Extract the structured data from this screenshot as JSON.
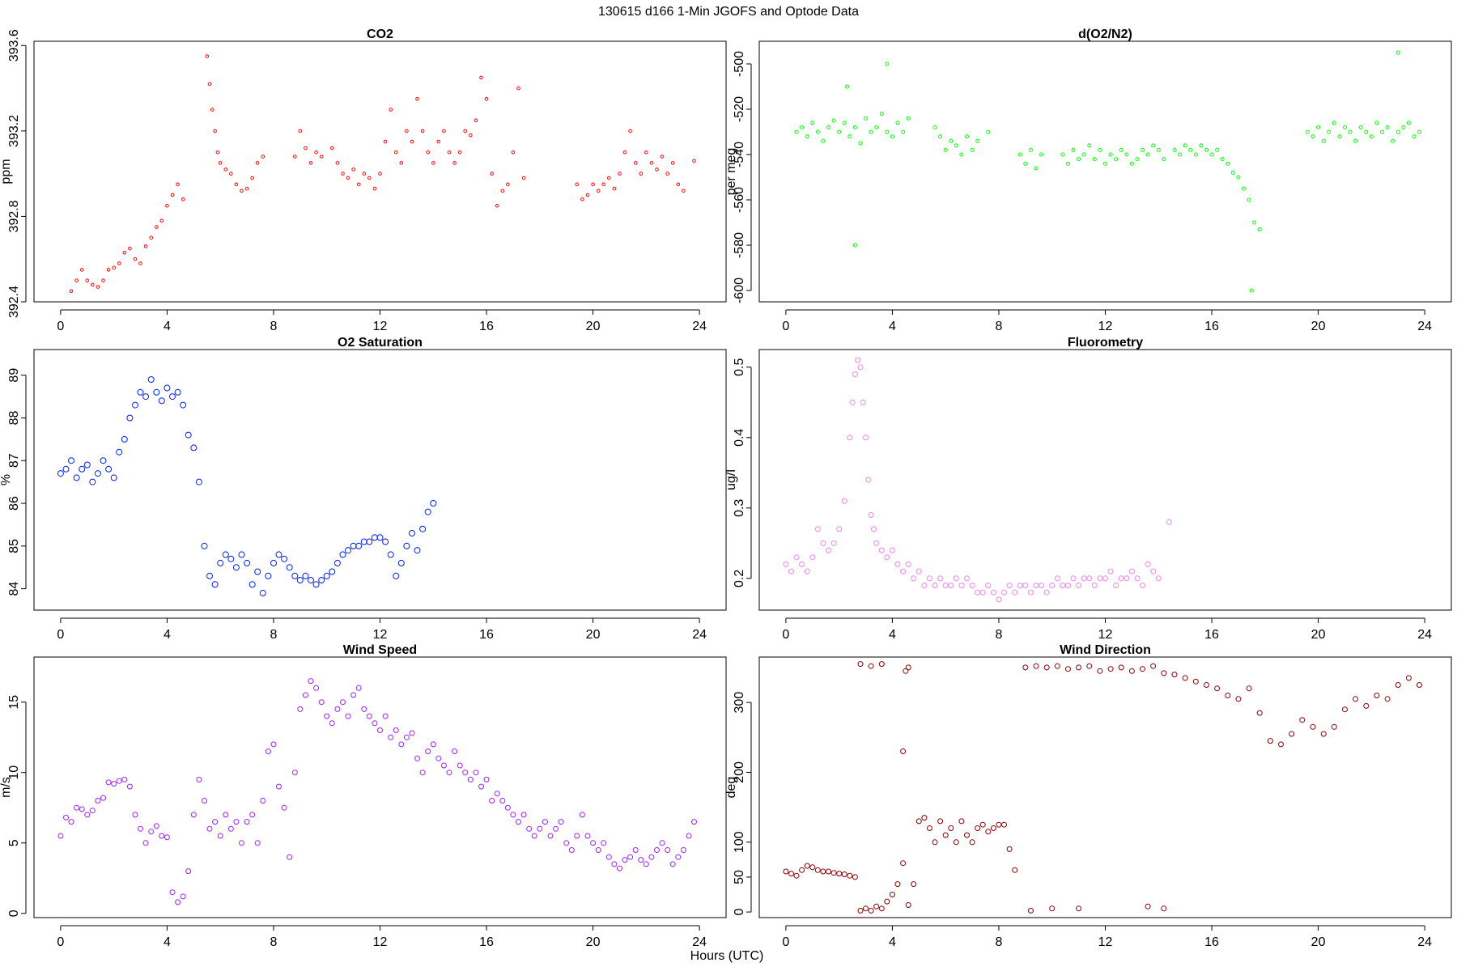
{
  "figure": {
    "suptitle": "130615   d166   1-Min  JGOFS and Optode Data",
    "xlabel": "Hours (UTC)"
  },
  "chart_data": [
    {
      "type": "scatter",
      "title": "CO2",
      "ylabel": "ppm",
      "color": "#ff0000",
      "marker_size": 1.8,
      "xlim": [
        -1,
        25
      ],
      "ylim": [
        392.4,
        393.62
      ],
      "xticks": [
        0,
        4,
        8,
        12,
        16,
        20,
        24
      ],
      "yticks": [
        392.4,
        392.8,
        393.2,
        393.6
      ],
      "x": [
        0.4,
        0.6,
        0.8,
        1.0,
        1.2,
        1.4,
        1.6,
        1.8,
        2.0,
        2.2,
        2.4,
        2.6,
        2.8,
        3.0,
        3.2,
        3.4,
        3.6,
        3.8,
        4.0,
        4.2,
        4.4,
        4.6,
        5.5,
        5.6,
        5.7,
        5.8,
        5.9,
        6.0,
        6.2,
        6.4,
        6.6,
        6.8,
        7.0,
        7.2,
        7.4,
        7.6,
        8.8,
        9.0,
        9.2,
        9.4,
        9.6,
        9.8,
        10.2,
        10.4,
        10.6,
        10.8,
        11.0,
        11.2,
        11.4,
        11.6,
        11.8,
        12.0,
        12.2,
        12.4,
        12.6,
        12.8,
        13.0,
        13.2,
        13.4,
        13.6,
        13.8,
        14.0,
        14.2,
        14.4,
        14.6,
        14.8,
        15.0,
        15.2,
        15.4,
        15.6,
        15.8,
        16.0,
        16.2,
        16.4,
        16.6,
        16.8,
        17.0,
        17.2,
        17.4,
        19.4,
        19.6,
        19.8,
        20.0,
        20.2,
        20.4,
        20.6,
        20.8,
        21.0,
        21.2,
        21.4,
        21.6,
        21.8,
        22.0,
        22.2,
        22.4,
        22.6,
        22.8,
        23.0,
        23.2,
        23.4,
        23.8
      ],
      "y": [
        392.45,
        392.5,
        392.55,
        392.5,
        392.48,
        392.47,
        392.5,
        392.55,
        392.56,
        392.58,
        392.63,
        392.65,
        392.6,
        392.58,
        392.66,
        392.7,
        392.75,
        392.78,
        392.85,
        392.9,
        392.95,
        392.88,
        393.55,
        393.42,
        393.3,
        393.2,
        393.1,
        393.05,
        393.02,
        393.0,
        392.95,
        392.92,
        392.93,
        392.98,
        393.05,
        393.08,
        393.08,
        393.2,
        393.12,
        393.05,
        393.1,
        393.08,
        393.12,
        393.05,
        393.0,
        392.98,
        393.02,
        392.95,
        393.0,
        392.98,
        392.93,
        393.0,
        393.15,
        393.3,
        393.1,
        393.05,
        393.2,
        393.15,
        393.35,
        393.2,
        393.1,
        393.05,
        393.15,
        393.2,
        393.1,
        393.05,
        393.1,
        393.2,
        393.18,
        393.25,
        393.45,
        393.35,
        393.0,
        392.85,
        392.92,
        392.95,
        393.1,
        393.4,
        392.98,
        392.95,
        392.88,
        392.9,
        392.95,
        392.92,
        392.95,
        392.98,
        392.93,
        393.0,
        393.1,
        393.2,
        393.05,
        393.0,
        393.1,
        393.05,
        393.02,
        393.08,
        393.0,
        393.05,
        392.95,
        392.92,
        393.06
      ]
    },
    {
      "type": "scatter",
      "title": "d(O2/N2)",
      "ylabel": "per meg",
      "color": "#00ff00",
      "marker_size": 2,
      "xlim": [
        -1,
        25
      ],
      "ylim": [
        -605,
        -490
      ],
      "xticks": [
        0,
        4,
        8,
        12,
        16,
        20,
        24
      ],
      "yticks": [
        -500,
        -520,
        -540,
        -560,
        -580,
        -600
      ],
      "x": [
        0.4,
        0.6,
        0.8,
        1.0,
        1.2,
        1.4,
        1.6,
        1.8,
        2.0,
        2.2,
        2.3,
        2.4,
        2.6,
        2.8,
        3.0,
        3.2,
        3.4,
        3.6,
        3.8,
        4.0,
        4.2,
        4.4,
        4.6,
        5.6,
        5.8,
        6.0,
        6.2,
        6.4,
        6.6,
        6.8,
        7.0,
        7.2,
        7.6,
        8.8,
        9.0,
        9.2,
        9.4,
        9.6,
        10.4,
        10.6,
        10.8,
        11.0,
        11.2,
        11.4,
        11.6,
        11.8,
        12.0,
        12.2,
        12.4,
        12.6,
        12.8,
        13.0,
        13.2,
        13.4,
        13.6,
        13.8,
        14.0,
        14.2,
        14.6,
        14.8,
        15.0,
        15.2,
        15.4,
        15.6,
        15.8,
        16.0,
        16.2,
        16.4,
        16.6,
        16.8,
        17.0,
        17.2,
        17.4,
        17.6,
        17.8,
        19.6,
        19.8,
        20.0,
        20.2,
        20.4,
        20.6,
        20.8,
        21.0,
        21.2,
        21.4,
        21.6,
        21.8,
        22.0,
        22.2,
        22.4,
        22.6,
        22.8,
        23.0,
        23.2,
        23.4,
        23.6,
        23.8,
        3.8,
        2.6,
        17.5,
        23.0
      ],
      "y": [
        -530,
        -528,
        -532,
        -526,
        -530,
        -534,
        -528,
        -525,
        -530,
        -526,
        -510,
        -532,
        -528,
        -535,
        -524,
        -530,
        -528,
        -522,
        -530,
        -532,
        -526,
        -530,
        -524,
        -528,
        -532,
        -538,
        -534,
        -536,
        -540,
        -532,
        -538,
        -534,
        -530,
        -540,
        -544,
        -538,
        -546,
        -540,
        -540,
        -544,
        -538,
        -542,
        -540,
        -536,
        -542,
        -538,
        -544,
        -540,
        -542,
        -538,
        -540,
        -544,
        -542,
        -538,
        -540,
        -536,
        -538,
        -542,
        -538,
        -540,
        -536,
        -538,
        -540,
        -536,
        -538,
        -540,
        -538,
        -542,
        -544,
        -548,
        -550,
        -555,
        -560,
        -570,
        -573,
        -530,
        -532,
        -528,
        -534,
        -530,
        -526,
        -532,
        -528,
        -530,
        -534,
        -528,
        -530,
        -532,
        -526,
        -530,
        -528,
        -534,
        -530,
        -528,
        -526,
        -532,
        -530,
        -500,
        -580,
        -600,
        -495
      ]
    },
    {
      "type": "scatter",
      "title": "O2 Saturation",
      "ylabel": "%",
      "color": "#0022ee",
      "marker_size": 3.5,
      "xlim": [
        -1,
        25
      ],
      "ylim": [
        83.5,
        89.6
      ],
      "xticks": [
        0,
        4,
        8,
        12,
        16,
        20,
        24
      ],
      "yticks": [
        84,
        85,
        86,
        87,
        88,
        89
      ],
      "x": [
        0.0,
        0.2,
        0.4,
        0.6,
        0.8,
        1.0,
        1.2,
        1.4,
        1.6,
        1.8,
        2.0,
        2.2,
        2.4,
        2.6,
        2.8,
        3.0,
        3.2,
        3.4,
        3.6,
        3.8,
        4.0,
        4.2,
        4.4,
        4.6,
        4.8,
        5.0,
        5.2,
        5.4,
        5.6,
        5.8,
        6.0,
        6.2,
        6.4,
        6.6,
        6.8,
        7.0,
        7.2,
        7.4,
        7.6,
        7.8,
        8.0,
        8.2,
        8.4,
        8.6,
        8.8,
        9.0,
        9.2,
        9.4,
        9.6,
        9.8,
        10.0,
        10.2,
        10.4,
        10.6,
        10.8,
        11.0,
        11.2,
        11.4,
        11.6,
        11.8,
        12.0,
        12.2,
        12.4,
        12.6,
        12.8,
        13.0,
        13.2,
        13.4,
        13.6,
        13.8,
        14.0
      ],
      "y": [
        86.7,
        86.8,
        87.0,
        86.6,
        86.8,
        86.9,
        86.5,
        86.7,
        87.0,
        86.8,
        86.6,
        87.2,
        87.5,
        88.0,
        88.3,
        88.6,
        88.5,
        88.9,
        88.6,
        88.4,
        88.7,
        88.5,
        88.6,
        88.3,
        87.6,
        87.3,
        86.5,
        85.0,
        84.3,
        84.1,
        84.6,
        84.8,
        84.7,
        84.5,
        84.8,
        84.6,
        84.1,
        84.4,
        83.9,
        84.3,
        84.6,
        84.8,
        84.7,
        84.5,
        84.3,
        84.2,
        84.3,
        84.2,
        84.1,
        84.2,
        84.3,
        84.4,
        84.6,
        84.8,
        84.9,
        85.0,
        85.0,
        85.1,
        85.1,
        85.2,
        85.2,
        85.1,
        84.8,
        84.3,
        84.6,
        85.0,
        85.3,
        84.9,
        85.4,
        85.8,
        86.0
      ]
    },
    {
      "type": "scatter",
      "title": "Fluorometry",
      "ylabel": "ug/l",
      "color": "#ee82ee",
      "marker_size": 3,
      "xlim": [
        -1,
        25
      ],
      "ylim": [
        0.155,
        0.525
      ],
      "xticks": [
        0,
        4,
        8,
        12,
        16,
        20,
        24
      ],
      "yticks": [
        0.2,
        0.3,
        0.4,
        0.5
      ],
      "x": [
        0.0,
        0.2,
        0.4,
        0.6,
        0.8,
        1.0,
        1.2,
        1.4,
        1.6,
        1.8,
        2.0,
        2.2,
        2.4,
        2.5,
        2.6,
        2.7,
        2.8,
        2.9,
        3.0,
        3.1,
        3.2,
        3.3,
        3.4,
        3.6,
        3.8,
        4.0,
        4.2,
        4.4,
        4.6,
        4.8,
        5.0,
        5.2,
        5.4,
        5.6,
        5.8,
        6.0,
        6.2,
        6.4,
        6.6,
        6.8,
        7.0,
        7.2,
        7.4,
        7.6,
        7.8,
        8.0,
        8.2,
        8.4,
        8.6,
        8.8,
        9.0,
        9.2,
        9.4,
        9.6,
        9.8,
        10.0,
        10.2,
        10.4,
        10.6,
        10.8,
        11.0,
        11.2,
        11.4,
        11.6,
        11.8,
        12.0,
        12.2,
        12.4,
        12.6,
        12.8,
        13.0,
        13.2,
        13.4,
        13.6,
        13.8,
        14.0,
        14.4
      ],
      "y": [
        0.22,
        0.21,
        0.23,
        0.22,
        0.21,
        0.23,
        0.27,
        0.25,
        0.24,
        0.25,
        0.27,
        0.31,
        0.4,
        0.45,
        0.49,
        0.51,
        0.5,
        0.45,
        0.4,
        0.34,
        0.29,
        0.27,
        0.25,
        0.24,
        0.23,
        0.24,
        0.22,
        0.21,
        0.22,
        0.2,
        0.21,
        0.19,
        0.2,
        0.19,
        0.2,
        0.19,
        0.19,
        0.2,
        0.19,
        0.2,
        0.19,
        0.18,
        0.18,
        0.19,
        0.18,
        0.17,
        0.18,
        0.19,
        0.18,
        0.19,
        0.19,
        0.18,
        0.19,
        0.19,
        0.18,
        0.19,
        0.2,
        0.19,
        0.19,
        0.2,
        0.19,
        0.2,
        0.2,
        0.19,
        0.2,
        0.2,
        0.21,
        0.19,
        0.2,
        0.2,
        0.21,
        0.2,
        0.19,
        0.22,
        0.21,
        0.2,
        0.28
      ]
    },
    {
      "type": "scatter",
      "title": "Wind Speed",
      "ylabel": "m/s",
      "color": "#a020f0",
      "marker_size": 3,
      "xlim": [
        -1,
        25
      ],
      "ylim": [
        -0.3,
        18.2
      ],
      "xticks": [
        0,
        4,
        8,
        12,
        16,
        20,
        24
      ],
      "yticks": [
        0,
        5,
        10,
        15
      ],
      "x": [
        0.0,
        0.2,
        0.4,
        0.6,
        0.8,
        1.0,
        1.2,
        1.4,
        1.6,
        1.8,
        2.0,
        2.2,
        2.4,
        2.6,
        2.8,
        3.0,
        3.2,
        3.4,
        3.6,
        3.8,
        4.0,
        4.2,
        4.4,
        4.6,
        4.8,
        5.0,
        5.2,
        5.4,
        5.6,
        5.8,
        6.0,
        6.2,
        6.4,
        6.6,
        6.8,
        7.0,
        7.2,
        7.4,
        7.6,
        7.8,
        8.0,
        8.2,
        8.4,
        8.6,
        8.8,
        9.0,
        9.2,
        9.4,
        9.6,
        9.8,
        10.0,
        10.2,
        10.4,
        10.6,
        10.8,
        11.0,
        11.2,
        11.4,
        11.6,
        11.8,
        12.0,
        12.2,
        12.4,
        12.6,
        12.8,
        13.0,
        13.2,
        13.4,
        13.6,
        13.8,
        14.0,
        14.2,
        14.4,
        14.6,
        14.8,
        15.0,
        15.2,
        15.4,
        15.6,
        15.8,
        16.0,
        16.2,
        16.4,
        16.6,
        16.8,
        17.0,
        17.2,
        17.4,
        17.6,
        17.8,
        18.0,
        18.2,
        18.4,
        18.6,
        18.8,
        19.0,
        19.2,
        19.4,
        19.6,
        19.8,
        20.0,
        20.2,
        20.4,
        20.6,
        20.8,
        21.0,
        21.2,
        21.4,
        21.6,
        21.8,
        22.0,
        22.2,
        22.4,
        22.6,
        22.8,
        23.0,
        23.2,
        23.4,
        23.6,
        23.8
      ],
      "y": [
        5.5,
        6.8,
        6.5,
        7.5,
        7.4,
        7.0,
        7.3,
        8.0,
        8.2,
        9.3,
        9.2,
        9.4,
        9.5,
        9.0,
        7.0,
        6.0,
        5.0,
        5.8,
        6.2,
        5.5,
        5.4,
        1.5,
        0.8,
        1.2,
        3.0,
        7.0,
        9.5,
        8.0,
        6.0,
        6.5,
        5.5,
        7.0,
        6.0,
        6.5,
        5.0,
        6.5,
        7.0,
        5.0,
        8.0,
        11.5,
        12.0,
        9.0,
        7.5,
        4.0,
        10.0,
        14.5,
        15.5,
        16.5,
        16.0,
        15.0,
        14.0,
        13.5,
        14.5,
        15.0,
        14.0,
        15.5,
        16.0,
        14.5,
        14.0,
        13.5,
        13.0,
        14.0,
        12.5,
        13.0,
        12.0,
        12.5,
        12.8,
        11.0,
        10.0,
        11.5,
        12.0,
        11.0,
        10.5,
        10.0,
        11.5,
        10.5,
        10.0,
        9.5,
        10.0,
        9.0,
        9.5,
        8.0,
        8.5,
        8.0,
        7.5,
        7.0,
        6.5,
        7.0,
        6.0,
        5.5,
        6.0,
        6.5,
        5.5,
        6.0,
        6.5,
        5.0,
        4.5,
        5.5,
        7.0,
        5.5,
        5.0,
        4.5,
        5.0,
        4.0,
        3.5,
        3.2,
        3.8,
        4.0,
        4.5,
        3.8,
        3.5,
        4.0,
        4.5,
        5.0,
        4.5,
        3.5,
        4.0,
        4.5,
        5.5,
        6.5
      ]
    },
    {
      "type": "scatter",
      "title": "Wind Direction",
      "ylabel": "deg",
      "color": "#8b0000",
      "marker_size": 3,
      "xlim": [
        -1,
        25
      ],
      "ylim": [
        -8,
        365
      ],
      "xticks": [
        0,
        4,
        8,
        12,
        16,
        20,
        24
      ],
      "yticks": [
        0,
        50,
        100,
        200,
        300
      ],
      "x": [
        0.0,
        0.2,
        0.4,
        0.6,
        0.8,
        1.0,
        1.2,
        1.4,
        1.6,
        1.8,
        2.0,
        2.2,
        2.4,
        2.6,
        2.8,
        3.0,
        3.2,
        3.4,
        3.6,
        3.8,
        4.0,
        4.2,
        4.4,
        4.6,
        4.8,
        5.0,
        5.2,
        5.4,
        5.6,
        5.8,
        6.0,
        6.2,
        6.4,
        6.6,
        6.8,
        7.0,
        7.2,
        7.4,
        7.6,
        7.8,
        8.0,
        8.2,
        8.4,
        8.6,
        9.0,
        9.4,
        9.8,
        10.2,
        10.6,
        11.0,
        11.4,
        11.8,
        12.2,
        12.6,
        13.0,
        13.4,
        13.8,
        14.2,
        14.6,
        15.0,
        15.4,
        15.8,
        16.2,
        16.6,
        17.0,
        17.4,
        17.8,
        18.2,
        18.6,
        19.0,
        19.4,
        19.8,
        20.2,
        20.6,
        21.0,
        21.4,
        21.8,
        22.2,
        22.6,
        23.0,
        23.4,
        23.8,
        2.8,
        3.2,
        3.6,
        4.5,
        4.6,
        4.4,
        9.2,
        10.0,
        11.0,
        13.6,
        14.2
      ],
      "y": [
        58,
        55,
        52,
        60,
        66,
        64,
        60,
        58,
        58,
        56,
        55,
        54,
        52,
        50,
        2,
        5,
        2,
        8,
        5,
        15,
        25,
        40,
        70,
        10,
        40,
        130,
        135,
        120,
        100,
        130,
        110,
        120,
        100,
        130,
        110,
        100,
        120,
        125,
        115,
        120,
        125,
        125,
        90,
        60,
        350,
        352,
        350,
        352,
        348,
        350,
        352,
        345,
        348,
        350,
        345,
        348,
        352,
        342,
        340,
        335,
        330,
        325,
        320,
        310,
        305,
        320,
        285,
        245,
        240,
        255,
        275,
        265,
        255,
        265,
        290,
        305,
        295,
        310,
        305,
        325,
        335,
        325,
        355,
        352,
        355,
        345,
        350,
        230,
        2,
        5,
        5,
        8,
        5
      ]
    }
  ]
}
